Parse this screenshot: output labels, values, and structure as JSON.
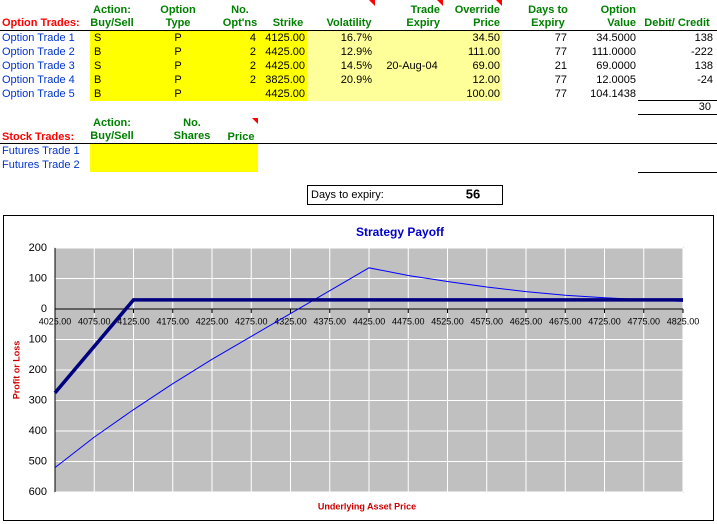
{
  "option_trades": {
    "label": "Option Trades:",
    "headers": [
      [
        "Action:",
        "Buy/Sell"
      ],
      [
        "Option",
        "Type"
      ],
      [
        "No.",
        "Opt'ns"
      ],
      [
        "Strike"
      ],
      [
        "Volatility"
      ],
      [
        "Trade",
        "Expiry"
      ],
      [
        "Override",
        "Price"
      ],
      [
        "Days to",
        "Expiry"
      ],
      [
        "Option",
        "Value"
      ],
      [
        "Debit/ Credit"
      ]
    ],
    "rows": [
      {
        "name": "Option Trade 1",
        "cells": [
          "S",
          "P",
          "4",
          "4125.00",
          "16.7%",
          null,
          "34.50",
          "77",
          "34.5000",
          "138"
        ]
      },
      {
        "name": "Option Trade 2",
        "cells": [
          "B",
          "P",
          "2",
          "4425.00",
          "12.9%",
          null,
          "111.00",
          "77",
          "111.0000",
          "-222"
        ]
      },
      {
        "name": "Option Trade 3",
        "cells": [
          "S",
          "P",
          "2",
          "4425.00",
          "14.5%",
          "20-Aug-04",
          "69.00",
          "21",
          "69.0000",
          "138"
        ]
      },
      {
        "name": "Option Trade 4",
        "cells": [
          "B",
          "P",
          "2",
          "3825.00",
          "20.9%",
          null,
          "12.00",
          "77",
          "12.0005",
          "-24"
        ]
      },
      {
        "name": "Option Trade 5",
        "cells": [
          "B",
          "P",
          null,
          "4425.00",
          null,
          null,
          "100.00",
          "77",
          "104.1438",
          null
        ]
      }
    ],
    "total": "30"
  },
  "stock_trades": {
    "label": "Stock Trades:",
    "headers": [
      [
        "Action:",
        "Buy/Sell"
      ],
      [
        "No.",
        "Shares"
      ],
      [
        "Price"
      ]
    ],
    "rows": [
      "Futures Trade 1",
      "Futures Trade 2"
    ]
  },
  "days_box": {
    "label": "Days to expiry:",
    "value": "56"
  },
  "chart_data": {
    "type": "line",
    "title": "Strategy Payoff",
    "x_label": "Underlying Asset Price",
    "y_label": "Profit or Loss",
    "xlim": [
      4025,
      4825
    ],
    "ylim": [
      -600,
      200
    ],
    "grid": true,
    "xticks": [
      {
        "value": 4025,
        "label": "4025.00"
      },
      {
        "value": 4075,
        "label": "4075.00"
      },
      {
        "value": 4125,
        "label": "4125.00"
      },
      {
        "value": 4175,
        "label": "4175.00"
      },
      {
        "value": 4225,
        "label": "4225.00"
      },
      {
        "value": 4275,
        "label": "4275.00"
      },
      {
        "value": 4325,
        "label": "4325.00"
      },
      {
        "value": 4375,
        "label": "4375.00"
      },
      {
        "value": 4425,
        "label": "4425.00"
      },
      {
        "value": 4475,
        "label": "4475.00"
      },
      {
        "value": 4525,
        "label": "4525.00"
      },
      {
        "value": 4575,
        "label": "4575.00"
      },
      {
        "value": 4625,
        "label": "4625.00"
      },
      {
        "value": 4675,
        "label": "4675.00"
      },
      {
        "value": 4725,
        "label": "4725.00"
      },
      {
        "value": 4775,
        "label": "4775.00"
      },
      {
        "value": 4825,
        "label": "4825.00"
      }
    ],
    "yticks": [
      200,
      100,
      0,
      {
        "value": -100,
        "label": "100"
      },
      {
        "value": -200,
        "label": "200"
      },
      {
        "value": -300,
        "label": "300"
      },
      {
        "value": -400,
        "label": "400"
      },
      {
        "value": -500,
        "label": "500"
      },
      {
        "value": -600,
        "label": "600"
      }
    ],
    "series": [
      {
        "color": "#0000ff",
        "line_width": 1,
        "x": [
          4025,
          4075,
          4125,
          4175,
          4225,
          4275,
          4325,
          4375,
          4425,
          4475,
          4525,
          4575,
          4625,
          4675,
          4725,
          4775,
          4825
        ],
        "values": [
          -520,
          -420,
          -330,
          -245,
          -165,
          -90,
          -15,
          60,
          135,
          110,
          90,
          72,
          57,
          45,
          37,
          30,
          25
        ]
      },
      {
        "color": "#000080",
        "line_width": 3.5,
        "x": [
          4025,
          4125,
          4825
        ],
        "values": [
          -275,
          30,
          30
        ]
      }
    ]
  }
}
